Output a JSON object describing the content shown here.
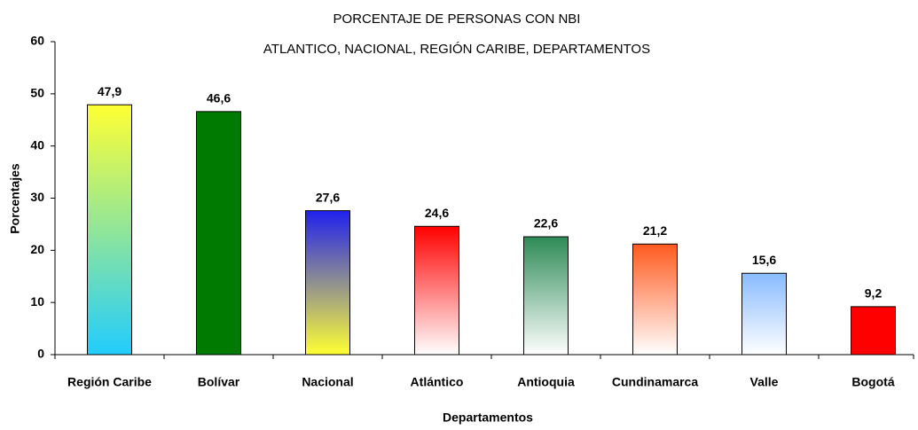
{
  "chart_data": {
    "type": "bar",
    "title": "PORCENTAJE DE PERSONAS CON NBI",
    "subtitle": "ATLANTICO, NACIONAL, REGIÓN CARIBE, DEPARTAMENTOS",
    "y_label": "Porcentajes",
    "x_label": "Departamentos",
    "categories": [
      "Región Caribe",
      "Bolívar",
      "Nacional",
      "Atlántico",
      "Antioquia",
      "Cundinamarca",
      "Valle",
      "Bogotá"
    ],
    "values": [
      47.9,
      46.6,
      27.6,
      24.6,
      22.6,
      21.2,
      15.6,
      9.2
    ],
    "value_labels": [
      "47,9",
      "46,6",
      "27,6",
      "24,6",
      "22,6",
      "21,2",
      "15,6",
      "9,2"
    ],
    "colors": [
      [
        "#ffff33",
        "#22ccff"
      ],
      [
        "#007a00",
        "#007a00"
      ],
      [
        "#2020ee",
        "#ffff33"
      ],
      [
        "#ff0000",
        "#ffffff"
      ],
      [
        "#2e8b57",
        "#ffffff"
      ],
      [
        "#ff5a1f",
        "#ffffff"
      ],
      [
        "#88bbff",
        "#ffffff"
      ],
      [
        "#ff0000",
        "#ff0000"
      ]
    ],
    "ylim": [
      0,
      60
    ],
    "yticks": [
      0,
      10,
      20,
      30,
      40,
      50,
      60
    ],
    "grid": false
  }
}
